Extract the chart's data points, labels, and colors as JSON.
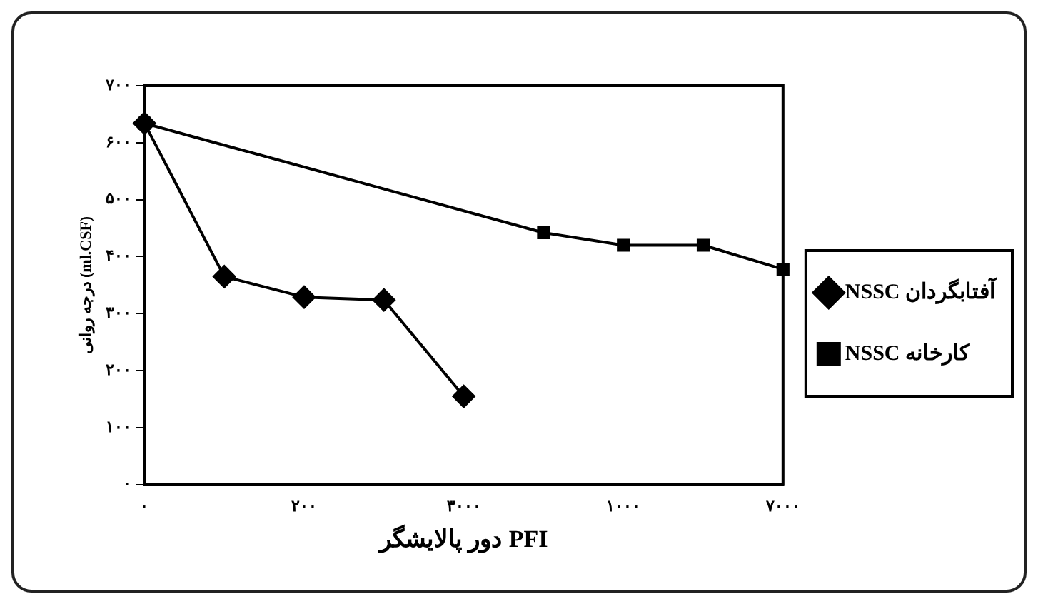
{
  "chart_data": {
    "type": "line",
    "xlabel": "دور پالایشگر PFI",
    "ylabel": "درجه روانی (ml.CSF)",
    "categories": [
      "۰",
      null,
      "۲۰۰",
      null,
      "۳۰۰۰",
      null,
      "۱۰۰۰",
      null,
      "۷۰۰۰"
    ],
    "ylim": [
      0,
      700
    ],
    "yticks": [
      {
        "value": 0,
        "label": "۰"
      },
      {
        "value": 100,
        "label": "۱۰۰"
      },
      {
        "value": 200,
        "label": "۲۰۰"
      },
      {
        "value": 300,
        "label": "۳۰۰"
      },
      {
        "value": 400,
        "label": "۴۰۰"
      },
      {
        "value": 500,
        "label": "۵۰۰"
      },
      {
        "value": 600,
        "label": "۶۰۰"
      },
      {
        "value": 700,
        "label": "۷۰۰"
      }
    ],
    "grid": false,
    "legend": "right",
    "line_style": "solid",
    "series": [
      {
        "name": "NSSC آفتابگردان",
        "color": "#000000",
        "marker": "diamond",
        "values": [
          634,
          365,
          329,
          324,
          155,
          null,
          null,
          null,
          null
        ]
      },
      {
        "name": "NSSC کارخانه",
        "color": "#000000",
        "marker": "square",
        "values": [
          634,
          null,
          null,
          null,
          null,
          442,
          420,
          420,
          378
        ]
      }
    ]
  }
}
